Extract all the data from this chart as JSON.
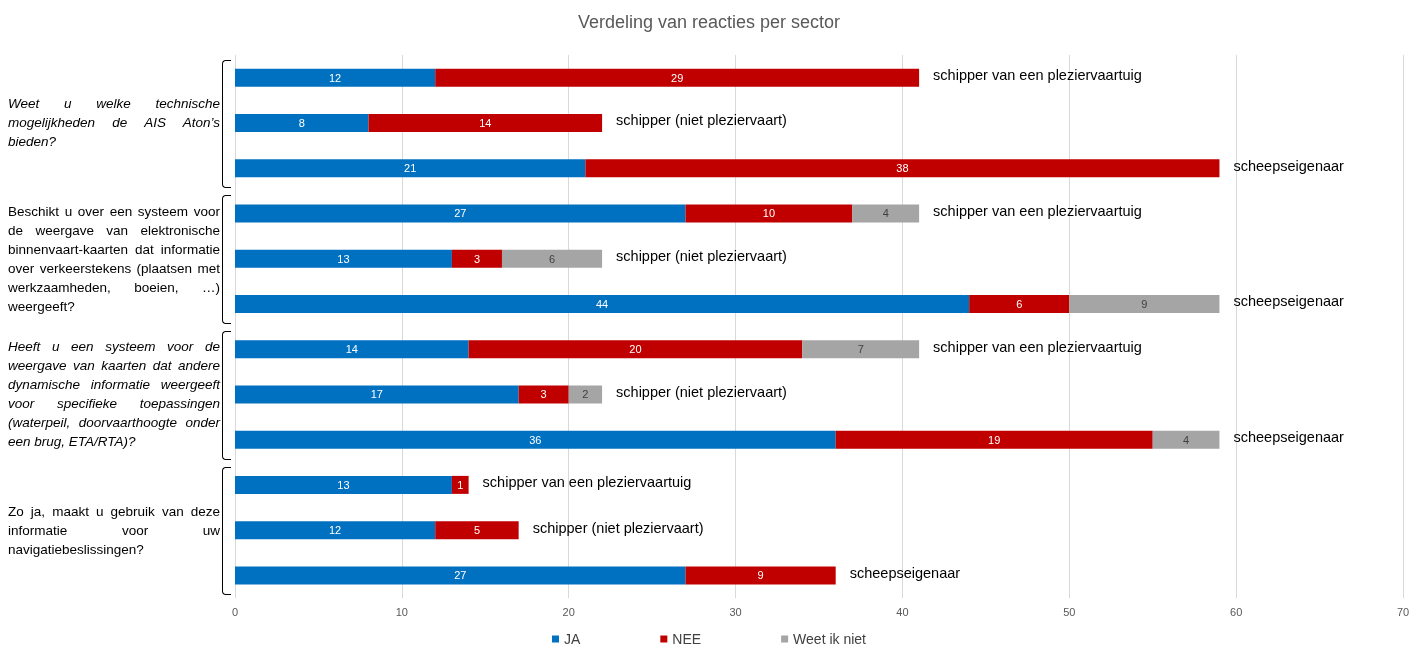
{
  "chart_data": {
    "type": "bar",
    "orientation": "horizontal",
    "stacked": true,
    "title": "Verdeling van reacties per sector",
    "categories": [
      "schipper van een pleziervaartuig",
      "schipper (niet pleziervaart)",
      "scheepseigenaar",
      "schipper van een pleziervaartuig",
      "schipper (niet pleziervaart)",
      "scheepseigenaar",
      "schipper van een pleziervaartuig",
      "schipper (niet pleziervaart)",
      "scheepseigenaar",
      "schipper van een pleziervaartuig",
      "schipper (niet pleziervaart)",
      "scheepseigenaar"
    ],
    "series": [
      {
        "name": "JA",
        "color": "#0070c0",
        "values": [
          12,
          8,
          21,
          27,
          13,
          44,
          14,
          17,
          36,
          13,
          12,
          27
        ]
      },
      {
        "name": "NEE",
        "color": "#c00000",
        "values": [
          29,
          14,
          38,
          10,
          3,
          6,
          20,
          3,
          19,
          1,
          5,
          9
        ]
      },
      {
        "name": "Weet ik niet",
        "color": "#a5a5a5",
        "values": [
          null,
          null,
          null,
          4,
          6,
          9,
          7,
          2,
          4,
          null,
          null,
          null
        ]
      }
    ],
    "xlim": [
      0,
      70
    ],
    "xticks": [
      0,
      10,
      20,
      30,
      40,
      50,
      60,
      70
    ],
    "grid": "x",
    "legend": "bottom",
    "data_labels": true,
    "annotations": [
      "Weet u welke technische mogelijkheden de AIS Aton’s bieden?",
      "Beschikt u over een systeem voor de weergave van elektronische binnenvaart-kaarten dat informatie over verkeerstekens (plaatsen met werkzaamheden, boeien, …) weergeeft?",
      "Heeft u een systeem voor de weergave van kaarten dat andere dynamische informatie weergeeft voor specifieke toepassingen (waterpeil, doorvaarthoogte onder een brug, ETA/RTA)?",
      "Zo ja, maakt u gebruik van deze informatie voor uw navigatiebeslissingen?"
    ]
  }
}
